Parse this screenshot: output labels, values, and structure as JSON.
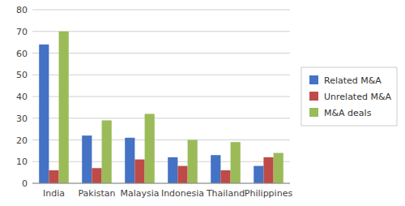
{
  "chart_data": {
    "type": "bar",
    "categories": [
      "India",
      "Pakistan",
      "Malaysia",
      "Indonesia",
      "Thailand",
      "Philippines"
    ],
    "series": [
      {
        "name": "Related M&A",
        "color": "#4472C4",
        "values": [
          64,
          22,
          21,
          12,
          13,
          8
        ]
      },
      {
        "name": "Unrelated M&A",
        "color": "#BE4B48",
        "values": [
          6,
          7,
          11,
          8,
          6,
          12
        ]
      },
      {
        "name": "M&A deals",
        "color": "#9BBB59",
        "values": [
          70,
          29,
          32,
          20,
          19,
          14
        ]
      }
    ],
    "ylim": [
      0,
      80
    ],
    "yticks": [
      0,
      10,
      20,
      30,
      40,
      50,
      60,
      70,
      80
    ],
    "grid": true,
    "legend": "right"
  }
}
